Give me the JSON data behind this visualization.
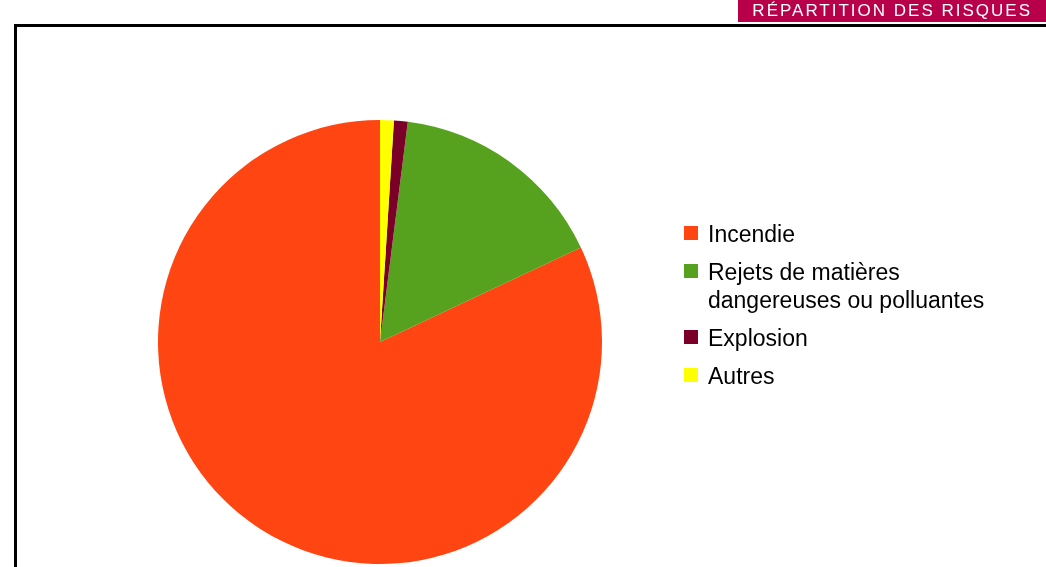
{
  "chart_data": {
    "type": "pie",
    "title": "RÉPARTITION DES RISQUES",
    "categories": [
      "Incendie",
      "Rejets de matières dangereuses ou polluantes",
      "Explosion",
      "Autres"
    ],
    "values": [
      82,
      16,
      1,
      1
    ],
    "colors": [
      "#ff4511",
      "#56a11e",
      "#7b0028",
      "#ffff00"
    ],
    "legend": "right"
  }
}
